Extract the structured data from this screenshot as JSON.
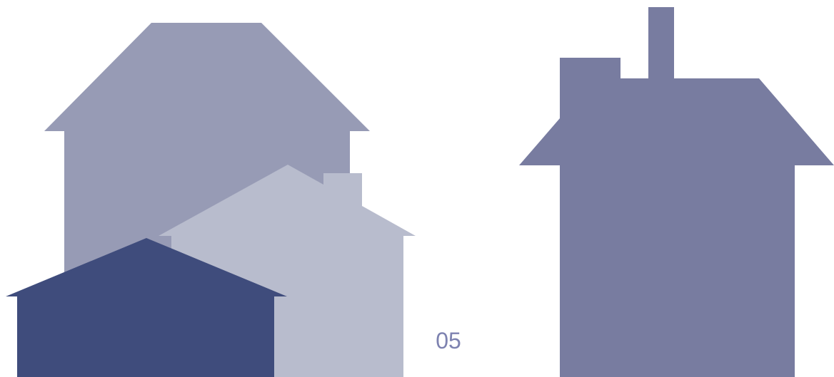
{
  "page_number": "05"
}
